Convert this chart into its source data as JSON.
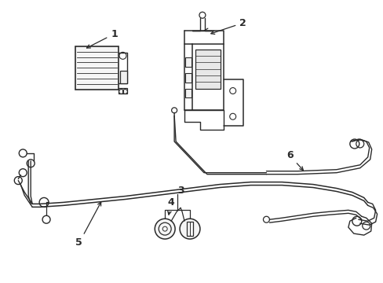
{
  "background_color": "#ffffff",
  "line_color": "#2a2a2a",
  "line_width": 1.0,
  "label_fontsize": 8,
  "figsize": [
    4.89,
    3.6
  ],
  "dpi": 100
}
